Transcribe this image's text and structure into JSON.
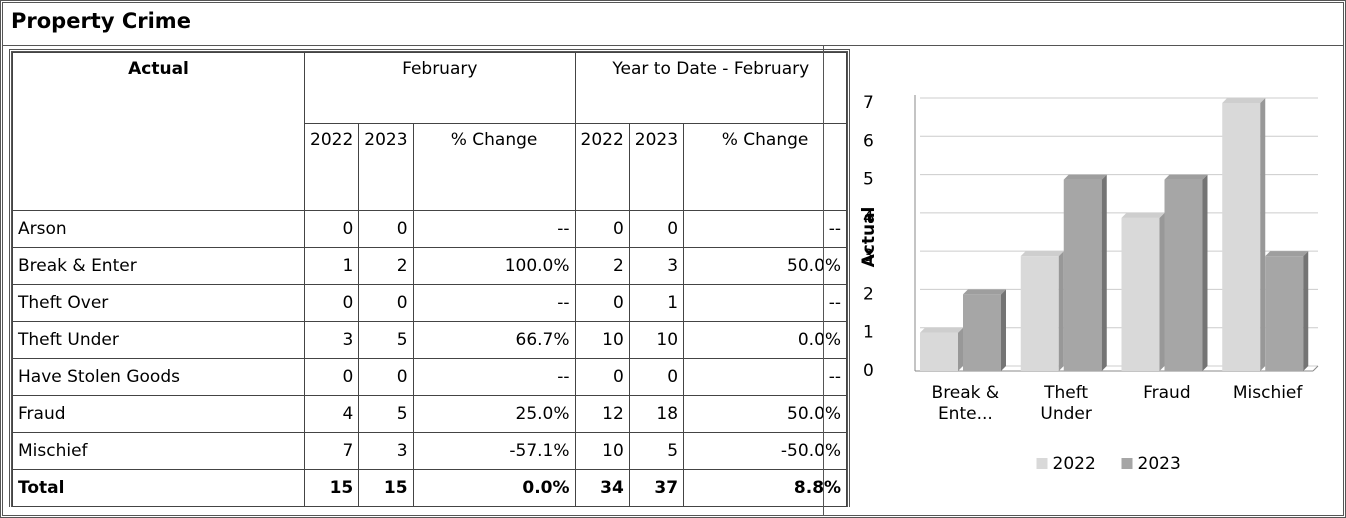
{
  "header": {
    "title": "Property Crime"
  },
  "table": {
    "header_row1": [
      "Actual",
      "February",
      "Year to Date - February"
    ],
    "header_row2": [
      "2022",
      "2023",
      "% Change",
      "2022",
      "2023",
      "% Change"
    ],
    "rows": [
      [
        "Arson",
        0,
        0,
        "--",
        0,
        0,
        "--"
      ],
      [
        "Break & Enter",
        1,
        2,
        "100.0%",
        2,
        3,
        "50.0%"
      ],
      [
        "Theft Over",
        0,
        0,
        "--",
        0,
        1,
        "--"
      ],
      [
        "Theft Under",
        3,
        5,
        "66.7%",
        10,
        10,
        "0.0%"
      ],
      [
        "Have Stolen Goods",
        0,
        0,
        "--",
        0,
        0,
        "--"
      ],
      [
        "Fraud",
        4,
        5,
        "25.0%",
        12,
        18,
        "50.0%"
      ],
      [
        "Mischief",
        7,
        3,
        "-57.1%",
        10,
        5,
        "-50.0%"
      ]
    ],
    "total": [
      "Total",
      15,
      15,
      "0.0%",
      34,
      37,
      "8.8%"
    ]
  },
  "chart_data": {
    "type": "bar",
    "ylabel": "Actual",
    "categories": [
      "Break & Ente...",
      "Theft Under",
      "Fraud",
      "Mischief"
    ],
    "series": [
      {
        "name": "2022",
        "color": "#d9d9d9",
        "values": [
          1,
          3,
          4,
          7
        ]
      },
      {
        "name": "2023",
        "color": "#a6a6a6",
        "values": [
          2,
          5,
          5,
          3
        ]
      }
    ],
    "ylim": [
      0,
      7
    ],
    "yticks": [
      0,
      1,
      2,
      3,
      4,
      5,
      6,
      7
    ],
    "grid": true,
    "legend": "bottom"
  }
}
